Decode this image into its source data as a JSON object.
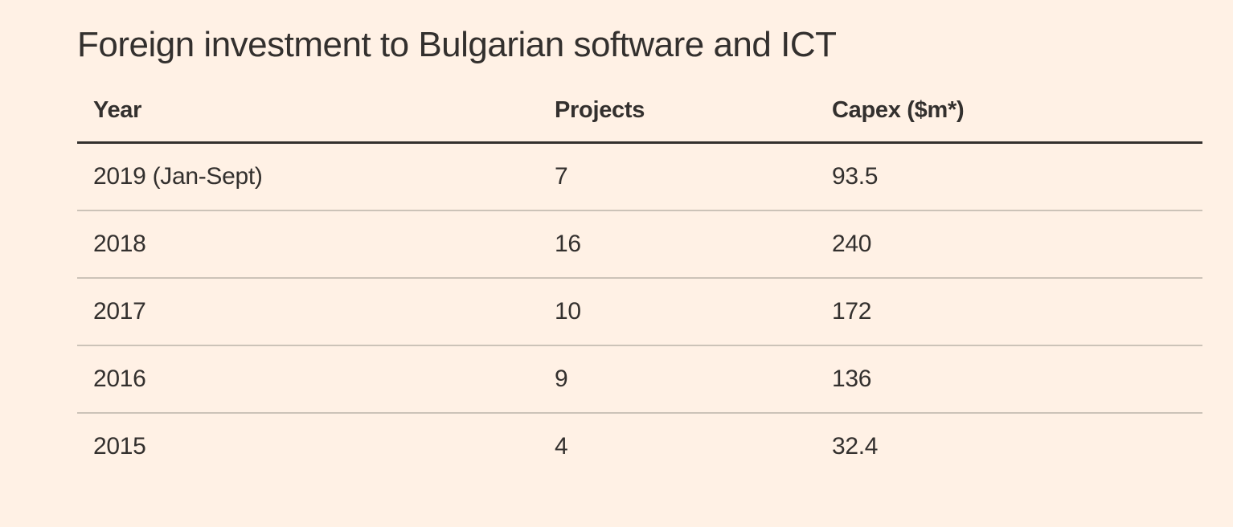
{
  "title": "Foreign investment to Bulgarian software and ICT",
  "table": {
    "columns": [
      "Year",
      "Projects",
      "Capex ($m*)"
    ],
    "rows": [
      [
        "2019 (Jan-Sept)",
        "7",
        "93.5"
      ],
      [
        "2018",
        "16",
        "240"
      ],
      [
        "2017",
        "10",
        "172"
      ],
      [
        "2016",
        "9",
        "136"
      ],
      [
        "2015",
        "4",
        "32.4"
      ]
    ]
  },
  "colors": {
    "background": "#FFF1E5",
    "text": "#33302E",
    "header_rule": "#33302E",
    "row_separator": "#CCC3B8"
  },
  "chart_data": {
    "type": "table",
    "title": "Foreign investment to Bulgarian software and ICT",
    "columns": [
      "Year",
      "Projects",
      "Capex ($m*)"
    ],
    "categories": [
      "2019 (Jan-Sept)",
      "2018",
      "2017",
      "2016",
      "2015"
    ],
    "series": [
      {
        "name": "Projects",
        "values": [
          7,
          16,
          10,
          9,
          4
        ]
      },
      {
        "name": "Capex ($m*)",
        "values": [
          93.5,
          240,
          172,
          136,
          32.4
        ]
      }
    ],
    "legend_position": "none",
    "grid": "horizontal-row-separators"
  }
}
